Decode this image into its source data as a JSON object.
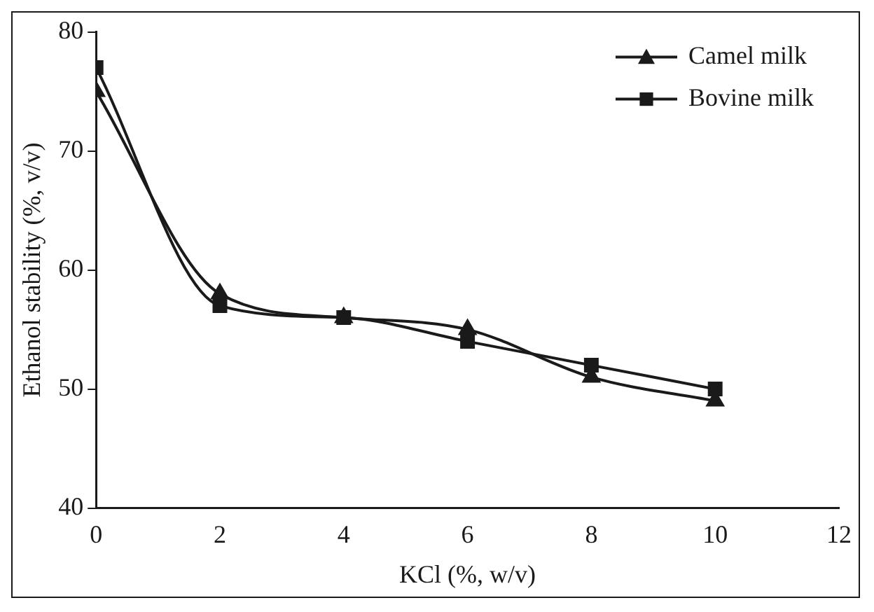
{
  "chart_data": {
    "type": "line",
    "xlabel": "KCl (%, w/v)",
    "ylabel": "Ethanol stability (%, v/v)",
    "x": [
      0,
      2,
      4,
      6,
      8,
      10
    ],
    "series": [
      {
        "name": "Camel milk",
        "color": "#1a1a1a",
        "marker": "triangle",
        "values": [
          75,
          58,
          56,
          55,
          51,
          49
        ]
      },
      {
        "name": "Bovine milk",
        "color": "#1a1a1a",
        "marker": "square",
        "values": [
          77,
          57,
          56,
          54,
          52,
          50
        ]
      }
    ],
    "xlim": [
      0,
      12
    ],
    "xticks": [
      0,
      2,
      4,
      6,
      8,
      10,
      12
    ],
    "ylim": [
      40,
      80
    ],
    "yticks": [
      40,
      50,
      60,
      70,
      80
    ],
    "grid": false,
    "legend": "top right",
    "line_style": "solid"
  }
}
